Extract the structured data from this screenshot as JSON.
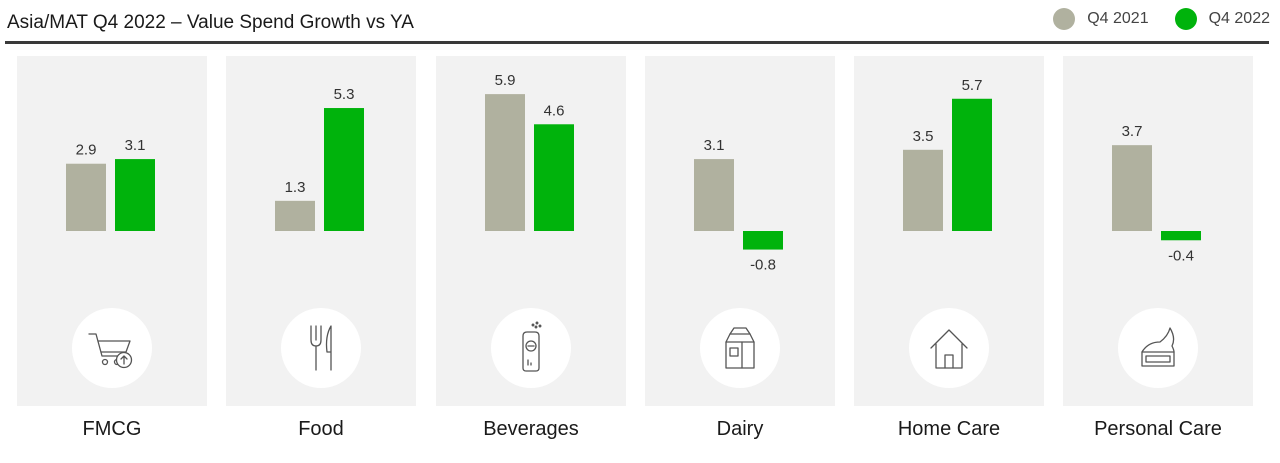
{
  "chart_data": {
    "type": "bar",
    "title": "Asia/MAT Q4 2022 – Value Spend Growth vs YA",
    "categories": [
      "FMCG",
      "Food",
      "Beverages",
      "Dairy",
      "Home Care",
      "Personal Care"
    ],
    "series": [
      {
        "name": "Q4 2021",
        "color": "#b0b19f",
        "values": [
          2.9,
          1.3,
          5.9,
          3.1,
          3.5,
          3.7
        ]
      },
      {
        "name": "Q4 2022",
        "color": "#00b30c",
        "values": [
          3.1,
          5.3,
          4.6,
          -0.8,
          5.7,
          -0.4
        ]
      }
    ],
    "xlabel": "",
    "ylabel": "",
    "grid": false,
    "legend": "top-right"
  },
  "icons": [
    "cart-icon",
    "fork-knife-icon",
    "bottle-icon",
    "milk-carton-icon",
    "house-icon",
    "cream-jar-icon"
  ]
}
